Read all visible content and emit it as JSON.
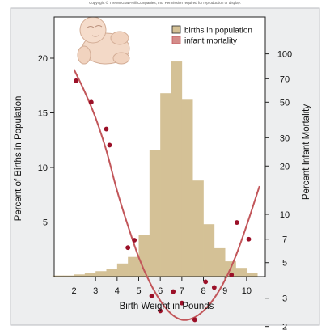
{
  "copyright": "Copyright © The McGraw-Hill Companies, Inc. Permission required for reproduction or display.",
  "colors": {
    "bars": "#d4c196",
    "curve": "#c2565a",
    "points": "#9b1028",
    "panel_bg": "#edeeef"
  },
  "icons": [
    "newborn-baby-illustration"
  ],
  "chart_data": {
    "type": "bar",
    "title": "",
    "xlabel": "Birth Weight in Pounds",
    "ylabel": "Percent of Births in Population",
    "y2label": "Percent Infant Mortality",
    "xlim": [
      1,
      11
    ],
    "ylim": [
      0,
      20
    ],
    "y2_scale": "log",
    "y2lim": [
      1.2,
      100
    ],
    "grid": false,
    "legend_position": "top-right",
    "x_ticks": [
      2,
      3,
      4,
      5,
      6,
      7,
      8,
      9,
      10
    ],
    "y_ticks": [
      5,
      10,
      15,
      20
    ],
    "y2_ticks": [
      2,
      3,
      5,
      7,
      10,
      20,
      30,
      50,
      70,
      100
    ],
    "legend": [
      {
        "label": "births in population",
        "color": "#d4c196",
        "kind": "box"
      },
      {
        "label": "infant mortality",
        "color": "#c2565a",
        "kind": "line"
      }
    ],
    "series": [
      {
        "name": "births in population",
        "type": "bar",
        "bin_width": 0.5,
        "bins": [
          {
            "x": 1.25,
            "value": 0.1
          },
          {
            "x": 1.75,
            "value": 0.1
          },
          {
            "x": 2.25,
            "value": 0.2
          },
          {
            "x": 2.75,
            "value": 0.3
          },
          {
            "x": 3.25,
            "value": 0.5
          },
          {
            "x": 3.75,
            "value": 0.7
          },
          {
            "x": 4.25,
            "value": 1.2
          },
          {
            "x": 4.75,
            "value": 1.8
          },
          {
            "x": 5.25,
            "value": 3.8
          },
          {
            "x": 5.75,
            "value": 11.6
          },
          {
            "x": 6.25,
            "value": 16.8
          },
          {
            "x": 6.75,
            "value": 19.7
          },
          {
            "x": 7.25,
            "value": 16.2
          },
          {
            "x": 7.75,
            "value": 8.8
          },
          {
            "x": 8.25,
            "value": 4.8
          },
          {
            "x": 8.75,
            "value": 2.6
          },
          {
            "x": 9.25,
            "value": 1.4
          },
          {
            "x": 9.75,
            "value": 0.8
          },
          {
            "x": 10.25,
            "value": 0.3
          }
        ]
      },
      {
        "name": "infant mortality",
        "type": "line",
        "axis": "right",
        "points": [
          {
            "x": 2.0,
            "y": 80
          },
          {
            "x": 2.5,
            "y": 58
          },
          {
            "x": 3.0,
            "y": 40
          },
          {
            "x": 3.5,
            "y": 25
          },
          {
            "x": 4.0,
            "y": 14
          },
          {
            "x": 4.5,
            "y": 8.5
          },
          {
            "x": 5.0,
            "y": 5.4
          },
          {
            "x": 5.5,
            "y": 3.8
          },
          {
            "x": 6.0,
            "y": 2.9
          },
          {
            "x": 6.5,
            "y": 2.4
          },
          {
            "x": 7.0,
            "y": 2.2
          },
          {
            "x": 7.5,
            "y": 2.25
          },
          {
            "x": 8.0,
            "y": 2.5
          },
          {
            "x": 8.5,
            "y": 3.0
          },
          {
            "x": 9.0,
            "y": 3.9
          },
          {
            "x": 9.5,
            "y": 5.5
          },
          {
            "x": 10.0,
            "y": 8.5
          },
          {
            "x": 10.6,
            "y": 15
          }
        ]
      },
      {
        "name": "infant mortality observations",
        "type": "scatter",
        "axis": "right",
        "points": [
          {
            "x": 2.1,
            "y": 68
          },
          {
            "x": 2.8,
            "y": 50
          },
          {
            "x": 3.5,
            "y": 34
          },
          {
            "x": 3.65,
            "y": 27
          },
          {
            "x": 4.5,
            "y": 6.2
          },
          {
            "x": 4.8,
            "y": 6.9
          },
          {
            "x": 5.6,
            "y": 3.1
          },
          {
            "x": 6.0,
            "y": 2.5
          },
          {
            "x": 6.6,
            "y": 3.3
          },
          {
            "x": 7.0,
            "y": 2.8
          },
          {
            "x": 7.6,
            "y": 2.2
          },
          {
            "x": 8.1,
            "y": 3.8
          },
          {
            "x": 8.5,
            "y": 3.5
          },
          {
            "x": 9.3,
            "y": 4.2
          },
          {
            "x": 9.55,
            "y": 8.9
          },
          {
            "x": 10.1,
            "y": 7.0
          }
        ]
      }
    ]
  }
}
